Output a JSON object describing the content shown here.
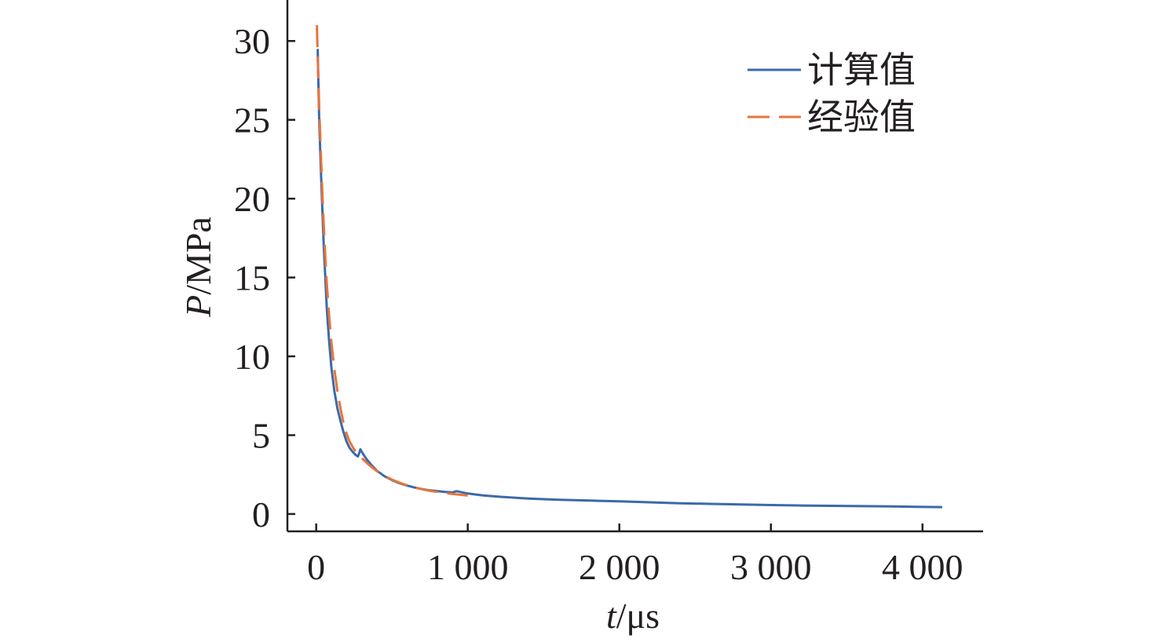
{
  "chart_data": {
    "type": "line",
    "xlabel": {
      "var": "t",
      "unit": "/μs"
    },
    "ylabel": {
      "var": "P",
      "unit": "/MPa"
    },
    "xlim": [
      -190,
      4400
    ],
    "ylim": [
      -1.1,
      32.6
    ],
    "x_ticks": [
      {
        "value": 0,
        "label": "0"
      },
      {
        "value": 1000,
        "label": "1 000"
      },
      {
        "value": 2000,
        "label": "2 000"
      },
      {
        "value": 3000,
        "label": "3 000"
      },
      {
        "value": 4000,
        "label": "4 000"
      }
    ],
    "y_ticks": [
      {
        "value": 0,
        "label": "0"
      },
      {
        "value": 5,
        "label": "5"
      },
      {
        "value": 10,
        "label": "10"
      },
      {
        "value": 15,
        "label": "15"
      },
      {
        "value": 20,
        "label": "20"
      },
      {
        "value": 25,
        "label": "25"
      },
      {
        "value": 30,
        "label": "30"
      }
    ],
    "legend_position": "top-right",
    "grid": false,
    "series": [
      {
        "name": "计算值",
        "color": "#3b6aa8",
        "style": "solid",
        "points": [
          [
            10,
            29.5
          ],
          [
            15,
            27.0
          ],
          [
            20,
            25.0
          ],
          [
            30,
            22.0
          ],
          [
            40,
            19.5
          ],
          [
            50,
            17.0
          ],
          [
            60,
            15.0
          ],
          [
            70,
            13.0
          ],
          [
            85,
            11.0
          ],
          [
            100,
            9.3
          ],
          [
            120,
            7.8
          ],
          [
            140,
            6.7
          ],
          [
            160,
            5.9
          ],
          [
            180,
            5.2
          ],
          [
            200,
            4.6
          ],
          [
            220,
            4.2
          ],
          [
            240,
            3.95
          ],
          [
            260,
            3.75
          ],
          [
            275,
            3.65
          ],
          [
            285,
            3.9
          ],
          [
            292,
            4.1
          ],
          [
            300,
            3.95
          ],
          [
            330,
            3.5
          ],
          [
            360,
            3.15
          ],
          [
            400,
            2.75
          ],
          [
            450,
            2.4
          ],
          [
            500,
            2.15
          ],
          [
            550,
            1.95
          ],
          [
            600,
            1.8
          ],
          [
            650,
            1.68
          ],
          [
            700,
            1.58
          ],
          [
            750,
            1.5
          ],
          [
            800,
            1.45
          ],
          [
            850,
            1.4
          ],
          [
            900,
            1.37
          ],
          [
            925,
            1.45
          ],
          [
            950,
            1.4
          ],
          [
            1000,
            1.3
          ],
          [
            1100,
            1.18
          ],
          [
            1200,
            1.1
          ],
          [
            1400,
            0.98
          ],
          [
            1600,
            0.9
          ],
          [
            1800,
            0.85
          ],
          [
            2000,
            0.8
          ],
          [
            2200,
            0.74
          ],
          [
            2400,
            0.68
          ],
          [
            2600,
            0.64
          ],
          [
            2800,
            0.6
          ],
          [
            3000,
            0.57
          ],
          [
            3200,
            0.54
          ],
          [
            3400,
            0.52
          ],
          [
            3600,
            0.5
          ],
          [
            3800,
            0.48
          ],
          [
            4000,
            0.45
          ],
          [
            4130,
            0.44
          ]
        ]
      },
      {
        "name": "经验值",
        "color": "#e8743b",
        "style": "dashed",
        "points": [
          [
            5,
            31.0
          ],
          [
            10,
            29.0
          ],
          [
            20,
            25.8
          ],
          [
            30,
            23.0
          ],
          [
            40,
            20.5
          ],
          [
            50,
            18.3
          ],
          [
            60,
            16.3
          ],
          [
            70,
            14.6
          ],
          [
            85,
            12.6
          ],
          [
            100,
            10.9
          ],
          [
            120,
            9.2
          ],
          [
            140,
            7.8
          ],
          [
            160,
            6.7
          ],
          [
            180,
            5.8
          ],
          [
            200,
            5.1
          ],
          [
            220,
            4.6
          ],
          [
            250,
            4.1
          ],
          [
            300,
            3.55
          ],
          [
            350,
            3.1
          ],
          [
            400,
            2.72
          ],
          [
            450,
            2.42
          ],
          [
            500,
            2.18
          ],
          [
            550,
            1.98
          ],
          [
            600,
            1.82
          ],
          [
            650,
            1.68
          ],
          [
            700,
            1.57
          ],
          [
            750,
            1.47
          ],
          [
            800,
            1.4
          ],
          [
            850,
            1.33
          ],
          [
            900,
            1.27
          ],
          [
            950,
            1.22
          ],
          [
            1000,
            1.17
          ]
        ]
      }
    ]
  }
}
